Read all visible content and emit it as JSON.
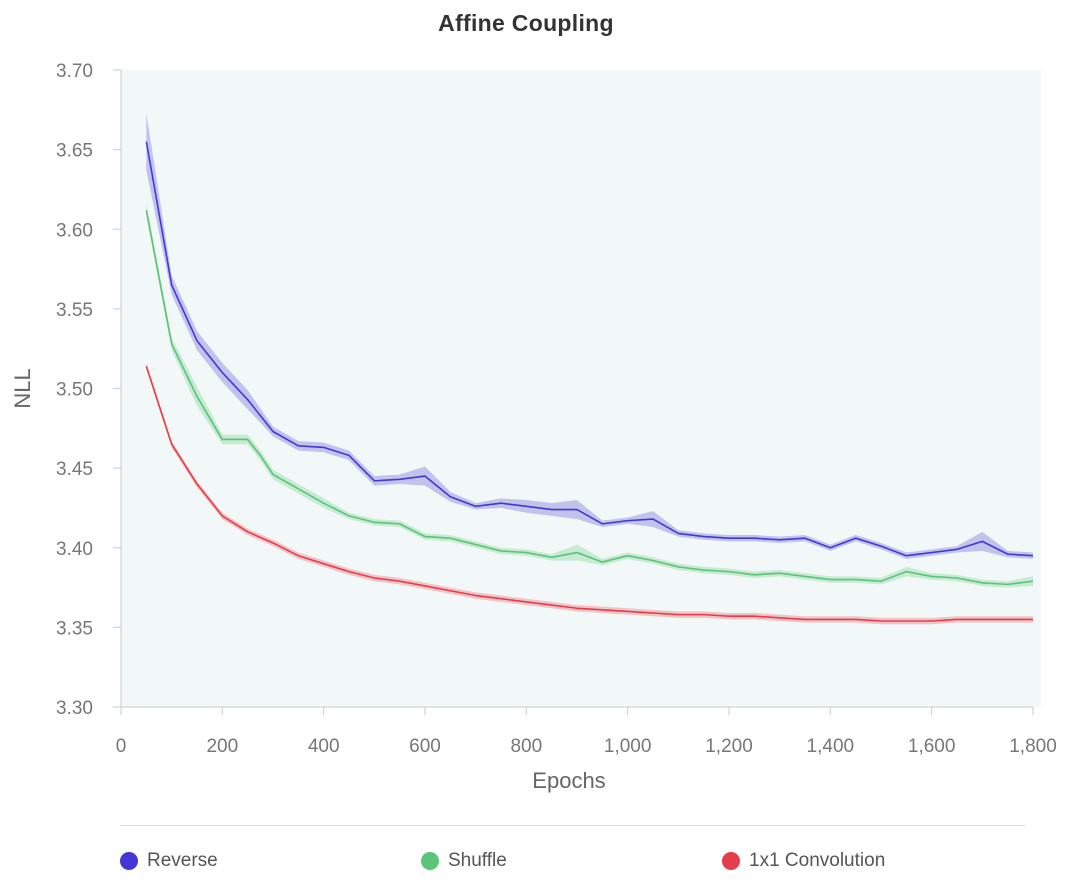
{
  "chart_data": {
    "type": "line",
    "title": "Affine Coupling",
    "xlabel": "Epochs",
    "ylabel": "NLL",
    "xlim": [
      0,
      1800
    ],
    "ylim": [
      3.3,
      3.7
    ],
    "x_ticks": [
      0,
      200,
      400,
      600,
      800,
      1000,
      1200,
      1400,
      1600,
      1800
    ],
    "x_tick_labels": [
      "0",
      "200",
      "400",
      "600",
      "800",
      "1,000",
      "1,200",
      "1,400",
      "1,600",
      "1,800"
    ],
    "y_ticks": [
      3.3,
      3.35,
      3.4,
      3.45,
      3.5,
      3.55,
      3.6,
      3.65,
      3.7
    ],
    "y_tick_labels": [
      "3.30",
      "3.35",
      "3.40",
      "3.45",
      "3.50",
      "3.55",
      "3.60",
      "3.65",
      "3.70"
    ],
    "grid": false,
    "legend_position": "bottom",
    "series": [
      {
        "name": "Reverse",
        "color": "#4338d4",
        "x": [
          50,
          100,
          150,
          200,
          250,
          300,
          350,
          400,
          450,
          500,
          550,
          600,
          650,
          700,
          750,
          800,
          850,
          900,
          950,
          1000,
          1050,
          1100,
          1150,
          1200,
          1250,
          1300,
          1350,
          1400,
          1450,
          1500,
          1550,
          1600,
          1650,
          1700,
          1750,
          1800
        ],
        "y": [
          3.655,
          3.565,
          3.53,
          3.51,
          3.493,
          3.473,
          3.464,
          3.463,
          3.458,
          3.442,
          3.443,
          3.445,
          3.432,
          3.426,
          3.428,
          3.426,
          3.424,
          3.424,
          3.415,
          3.417,
          3.418,
          3.409,
          3.407,
          3.406,
          3.406,
          3.405,
          3.406,
          3.4,
          3.406,
          3.401,
          3.395,
          3.397,
          3.399,
          3.404,
          3.396,
          3.395
        ],
        "band": [
          0.018,
          0.006,
          0.006,
          0.006,
          0.006,
          0.003,
          0.003,
          0.003,
          0.003,
          0.003,
          0.003,
          0.006,
          0.003,
          0.002,
          0.003,
          0.004,
          0.004,
          0.006,
          0.002,
          0.002,
          0.005,
          0.002,
          0.002,
          0.002,
          0.002,
          0.002,
          0.002,
          0.002,
          0.002,
          0.002,
          0.002,
          0.002,
          0.002,
          0.006,
          0.002,
          0.002
        ]
      },
      {
        "name": "Shuffle",
        "color": "#5ac477",
        "x": [
          50,
          100,
          150,
          200,
          250,
          275,
          300,
          350,
          400,
          450,
          500,
          550,
          600,
          650,
          700,
          750,
          800,
          850,
          900,
          950,
          1000,
          1050,
          1100,
          1150,
          1200,
          1250,
          1300,
          1350,
          1400,
          1450,
          1500,
          1550,
          1600,
          1650,
          1700,
          1750,
          1800
        ],
        "y": [
          3.612,
          3.528,
          3.495,
          3.468,
          3.468,
          3.458,
          3.446,
          3.437,
          3.428,
          3.42,
          3.416,
          3.415,
          3.407,
          3.406,
          3.402,
          3.398,
          3.397,
          3.394,
          3.397,
          3.391,
          3.395,
          3.392,
          3.388,
          3.386,
          3.385,
          3.383,
          3.384,
          3.382,
          3.38,
          3.38,
          3.379,
          3.385,
          3.382,
          3.381,
          3.378,
          3.377,
          3.379
        ],
        "band": [
          0.004,
          0.004,
          0.006,
          0.003,
          0.003,
          0.003,
          0.003,
          0.003,
          0.003,
          0.002,
          0.002,
          0.002,
          0.002,
          0.002,
          0.002,
          0.002,
          0.002,
          0.002,
          0.005,
          0.002,
          0.002,
          0.002,
          0.002,
          0.002,
          0.002,
          0.002,
          0.002,
          0.002,
          0.002,
          0.002,
          0.002,
          0.003,
          0.002,
          0.002,
          0.002,
          0.002,
          0.003
        ]
      },
      {
        "name": "1x1 Convolution",
        "color": "#e63d4a",
        "x": [
          50,
          100,
          150,
          200,
          250,
          300,
          350,
          400,
          450,
          500,
          550,
          600,
          650,
          700,
          750,
          800,
          850,
          900,
          950,
          1000,
          1050,
          1100,
          1150,
          1200,
          1250,
          1300,
          1350,
          1400,
          1450,
          1500,
          1550,
          1600,
          1650,
          1700,
          1750,
          1800
        ],
        "y": [
          3.514,
          3.465,
          3.44,
          3.42,
          3.41,
          3.403,
          3.395,
          3.39,
          3.385,
          3.381,
          3.379,
          3.376,
          3.373,
          3.37,
          3.368,
          3.366,
          3.364,
          3.362,
          3.361,
          3.36,
          3.359,
          3.358,
          3.358,
          3.357,
          3.357,
          3.356,
          3.355,
          3.355,
          3.355,
          3.354,
          3.354,
          3.354,
          3.355,
          3.355,
          3.355,
          3.355
        ],
        "band": [
          0.002,
          0.002,
          0.002,
          0.002,
          0.002,
          0.002,
          0.002,
          0.002,
          0.002,
          0.002,
          0.002,
          0.002,
          0.002,
          0.002,
          0.002,
          0.002,
          0.002,
          0.002,
          0.002,
          0.002,
          0.002,
          0.002,
          0.002,
          0.002,
          0.002,
          0.002,
          0.002,
          0.002,
          0.002,
          0.002,
          0.002,
          0.002,
          0.002,
          0.002,
          0.002,
          0.002
        ]
      }
    ]
  },
  "colors": {
    "plot_background": "#f2f8f7",
    "axis": "#cfd3d6",
    "tick_text": "#777777",
    "axis_label_text": "#666666",
    "title_text": "#333333"
  }
}
